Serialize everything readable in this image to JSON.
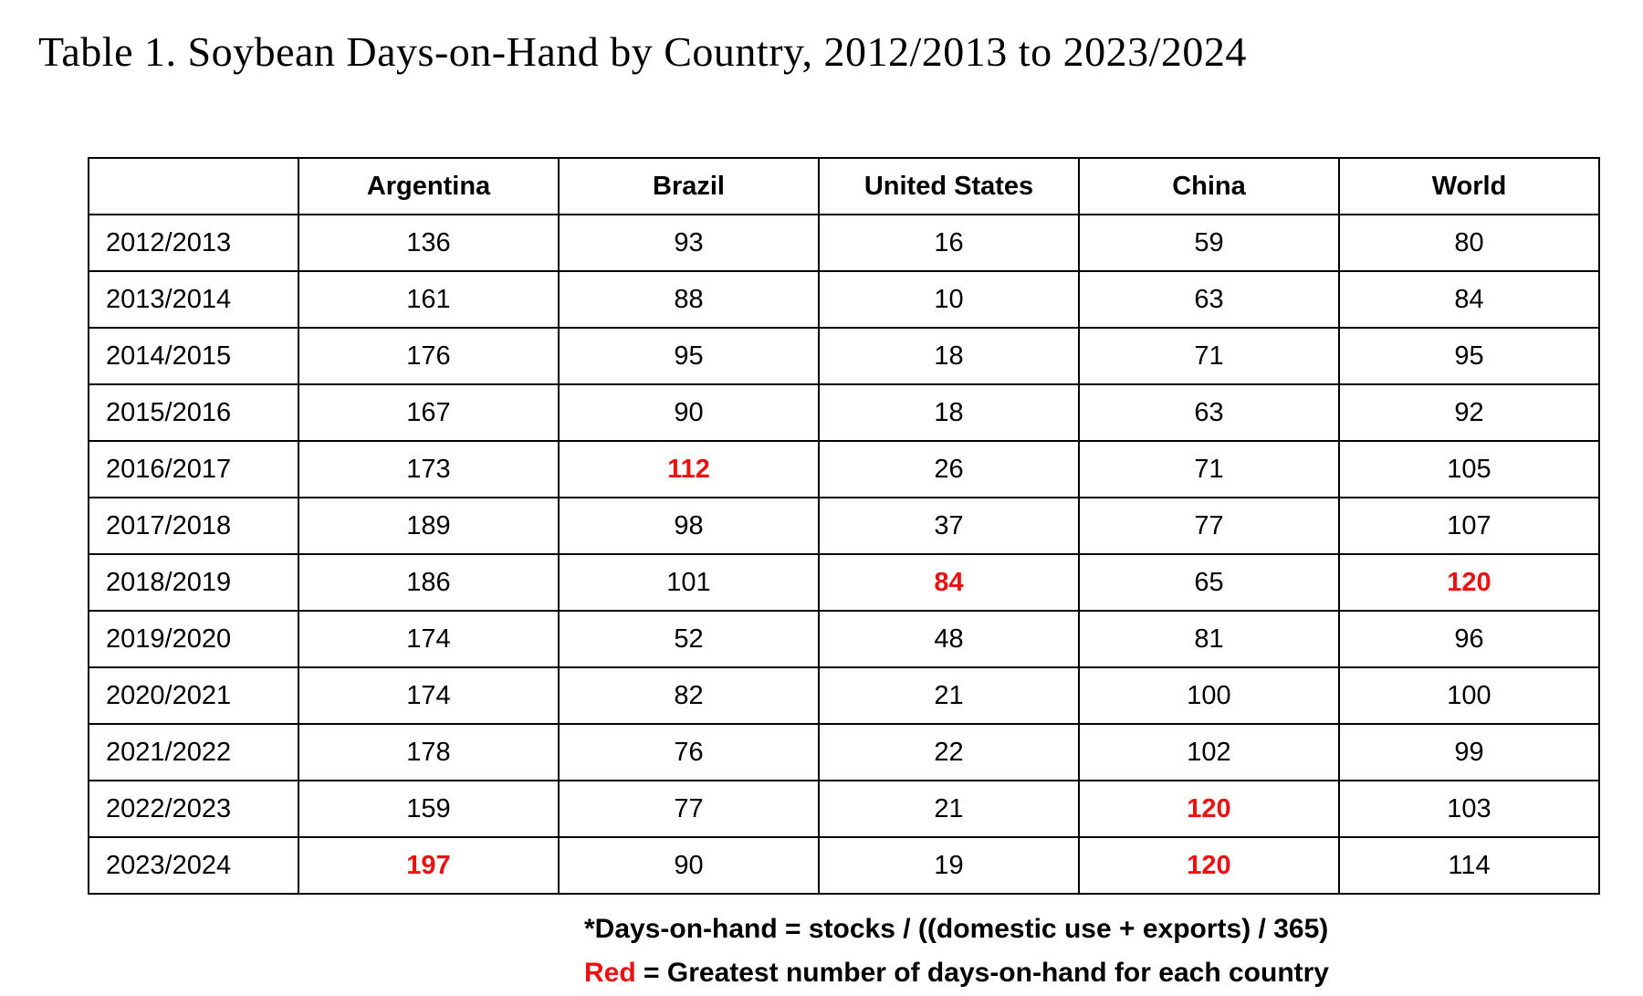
{
  "title": "Table 1. Soybean Days-on-Hand by Country, 2012/2013 to 2023/2024",
  "colors": {
    "highlight_red": "#ee1111",
    "text": "#000000",
    "border": "#000000",
    "background": "#ffffff"
  },
  "chart_data": {
    "type": "table",
    "title": "Table 1. Soybean Days-on-Hand by Country, 2012/2013 to 2023/2024",
    "columns": [
      "",
      "Argentina",
      "Brazil",
      "United States",
      "China",
      "World"
    ],
    "rows": [
      {
        "year": "2012/2013",
        "values": [
          "136",
          "93",
          "16",
          "59",
          "80"
        ],
        "red": [
          false,
          false,
          false,
          false,
          false
        ]
      },
      {
        "year": "2013/2014",
        "values": [
          "161",
          "88",
          "10",
          "63",
          "84"
        ],
        "red": [
          false,
          false,
          false,
          false,
          false
        ]
      },
      {
        "year": "2014/2015",
        "values": [
          "176",
          "95",
          "18",
          "71",
          "95"
        ],
        "red": [
          false,
          false,
          false,
          false,
          false
        ]
      },
      {
        "year": "2015/2016",
        "values": [
          "167",
          "90",
          "18",
          "63",
          "92"
        ],
        "red": [
          false,
          false,
          false,
          false,
          false
        ]
      },
      {
        "year": "2016/2017",
        "values": [
          "173",
          "112",
          "26",
          "71",
          "105"
        ],
        "red": [
          false,
          true,
          false,
          false,
          false
        ]
      },
      {
        "year": "2017/2018",
        "values": [
          "189",
          "98",
          "37",
          "77",
          "107"
        ],
        "red": [
          false,
          false,
          false,
          false,
          false
        ]
      },
      {
        "year": "2018/2019",
        "values": [
          "186",
          "101",
          "84",
          "65",
          "120"
        ],
        "red": [
          false,
          false,
          true,
          false,
          true
        ]
      },
      {
        "year": "2019/2020",
        "values": [
          "174",
          "52",
          "48",
          "81",
          "96"
        ],
        "red": [
          false,
          false,
          false,
          false,
          false
        ]
      },
      {
        "year": "2020/2021",
        "values": [
          "174",
          "82",
          "21",
          "100",
          "100"
        ],
        "red": [
          false,
          false,
          false,
          false,
          false
        ]
      },
      {
        "year": "2021/2022",
        "values": [
          "178",
          "76",
          "22",
          "102",
          "99"
        ],
        "red": [
          false,
          false,
          false,
          false,
          false
        ]
      },
      {
        "year": "2022/2023",
        "values": [
          "159",
          "77",
          "21",
          "120",
          "103"
        ],
        "red": [
          false,
          false,
          false,
          true,
          false
        ]
      },
      {
        "year": "2023/2024",
        "values": [
          "197",
          "90",
          "19",
          "120",
          "114"
        ],
        "red": [
          true,
          false,
          false,
          true,
          false
        ]
      }
    ],
    "highlight_meaning": "Red = Greatest number of days-on-hand for each country"
  },
  "footnotes": {
    "formula": "*Days-on-hand = stocks / ((domestic use + exports) / 365)",
    "legend_prefix": "Red",
    "legend_rest": " = Greatest number of days-on-hand for each country"
  }
}
